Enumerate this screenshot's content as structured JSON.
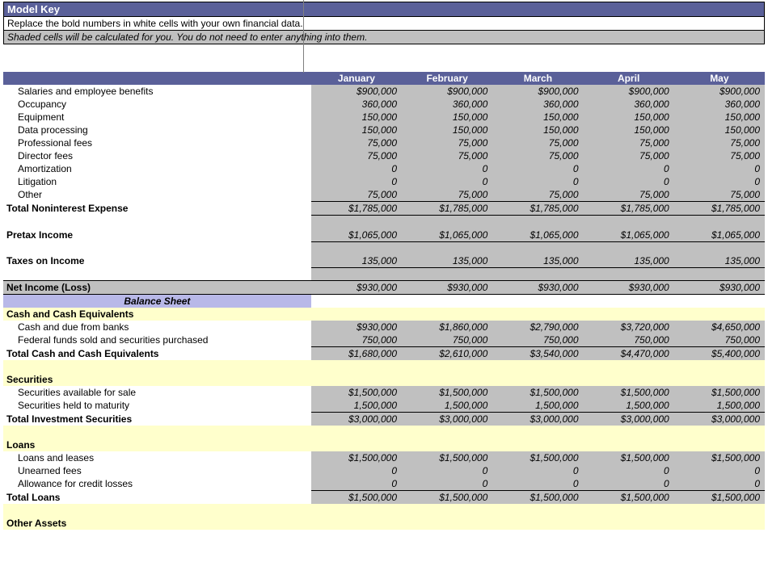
{
  "key": {
    "title": "Model Key",
    "line1": "Replace the bold numbers in white cells with your own financial data.",
    "line2": "Shaded cells will be calculated for you. You do not need to enter anything into them."
  },
  "months": [
    "January",
    "February",
    "March",
    "April",
    "May"
  ],
  "rows": {
    "sal": {
      "label": "Salaries and employee benefits",
      "v": [
        "$900,000",
        "$900,000",
        "$900,000",
        "$900,000",
        "$900,000"
      ]
    },
    "occ": {
      "label": "Occupancy",
      "v": [
        "360,000",
        "360,000",
        "360,000",
        "360,000",
        "360,000"
      ]
    },
    "eqp": {
      "label": "Equipment",
      "v": [
        "150,000",
        "150,000",
        "150,000",
        "150,000",
        "150,000"
      ]
    },
    "dp": {
      "label": "Data processing",
      "v": [
        "150,000",
        "150,000",
        "150,000",
        "150,000",
        "150,000"
      ]
    },
    "pf": {
      "label": "Professional fees",
      "v": [
        "75,000",
        "75,000",
        "75,000",
        "75,000",
        "75,000"
      ]
    },
    "df": {
      "label": "Director fees",
      "v": [
        "75,000",
        "75,000",
        "75,000",
        "75,000",
        "75,000"
      ]
    },
    "am": {
      "label": "Amortization",
      "v": [
        "0",
        "0",
        "0",
        "0",
        "0"
      ]
    },
    "lit": {
      "label": "Litigation",
      "v": [
        "0",
        "0",
        "0",
        "0",
        "0"
      ]
    },
    "oth": {
      "label": "Other",
      "v": [
        "75,000",
        "75,000",
        "75,000",
        "75,000",
        "75,000"
      ]
    },
    "tne": {
      "label": "Total Noninterest Expense",
      "v": [
        "$1,785,000",
        "$1,785,000",
        "$1,785,000",
        "$1,785,000",
        "$1,785,000"
      ]
    },
    "pti": {
      "label": "Pretax Income",
      "v": [
        "$1,065,000",
        "$1,065,000",
        "$1,065,000",
        "$1,065,000",
        "$1,065,000"
      ]
    },
    "tax": {
      "label": "Taxes on Income",
      "v": [
        "135,000",
        "135,000",
        "135,000",
        "135,000",
        "135,000"
      ]
    },
    "net": {
      "label": "Net Income (Loss)",
      "v": [
        "$930,000",
        "$930,000",
        "$930,000",
        "$930,000",
        "$930,000"
      ]
    },
    "bs": {
      "label": "Balance Sheet"
    },
    "cce": {
      "label": "Cash and Cash Equivalents"
    },
    "cash": {
      "label": "Cash and due from banks",
      "v": [
        "$930,000",
        "$1,860,000",
        "$2,790,000",
        "$3,720,000",
        "$4,650,000"
      ]
    },
    "fed": {
      "label": "Federal funds sold and securities purchased",
      "v": [
        "750,000",
        "750,000",
        "750,000",
        "750,000",
        "750,000"
      ]
    },
    "tcce": {
      "label": "Total Cash and Cash Equivalents",
      "v": [
        "$1,680,000",
        "$2,610,000",
        "$3,540,000",
        "$4,470,000",
        "$5,400,000"
      ]
    },
    "sec": {
      "label": "Securities"
    },
    "safs": {
      "label": "Securities available for sale",
      "v": [
        "$1,500,000",
        "$1,500,000",
        "$1,500,000",
        "$1,500,000",
        "$1,500,000"
      ]
    },
    "shtm": {
      "label": "Securities held to maturity",
      "v": [
        "1,500,000",
        "1,500,000",
        "1,500,000",
        "1,500,000",
        "1,500,000"
      ]
    },
    "tis": {
      "label": "Total Investment Securities",
      "v": [
        "$3,000,000",
        "$3,000,000",
        "$3,000,000",
        "$3,000,000",
        "$3,000,000"
      ]
    },
    "loans": {
      "label": "Loans"
    },
    "ll": {
      "label": "Loans and leases",
      "v": [
        "$1,500,000",
        "$1,500,000",
        "$1,500,000",
        "$1,500,000",
        "$1,500,000"
      ]
    },
    "uf": {
      "label": "Unearned fees",
      "v": [
        "0",
        "0",
        "0",
        "0",
        "0"
      ]
    },
    "acl": {
      "label": "Allowance for credit losses",
      "v": [
        "0",
        "0",
        "0",
        "0",
        "0"
      ]
    },
    "tl": {
      "label": "Total Loans",
      "v": [
        "$1,500,000",
        "$1,500,000",
        "$1,500,000",
        "$1,500,000",
        "$1,500,000"
      ]
    },
    "oa": {
      "label": "Other Assets"
    }
  }
}
